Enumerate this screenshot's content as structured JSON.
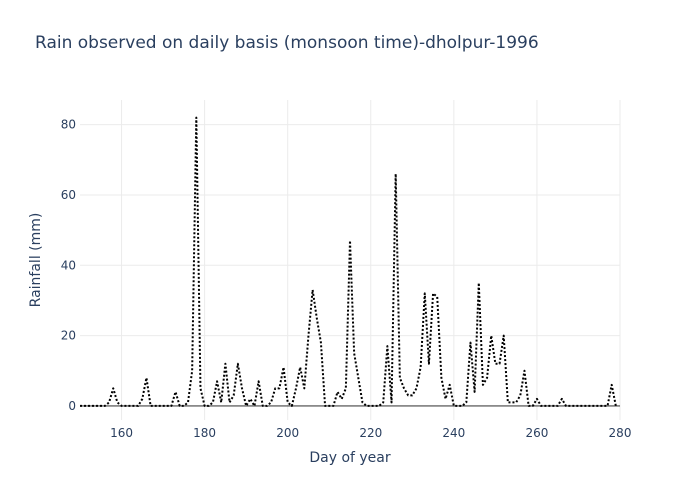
{
  "chart_data": {
    "type": "line",
    "title": "Rain observed on daily basis (monsoon time)-dholpur-1996",
    "xlabel": "Day of year",
    "ylabel": "Rainfall (mm)",
    "xlim": [
      150,
      280
    ],
    "ylim": [
      -4,
      87
    ],
    "xticks": [
      160,
      180,
      200,
      220,
      240,
      260,
      280
    ],
    "yticks": [
      0,
      20,
      40,
      60,
      80
    ],
    "grid": true,
    "legend": "none",
    "line_style": "dotted",
    "line_color": "#000000",
    "x": [
      150,
      151,
      152,
      153,
      154,
      155,
      156,
      157,
      158,
      159,
      160,
      161,
      162,
      163,
      164,
      165,
      166,
      167,
      168,
      169,
      170,
      171,
      172,
      173,
      174,
      175,
      176,
      177,
      178,
      179,
      180,
      181,
      182,
      183,
      184,
      185,
      186,
      187,
      188,
      189,
      190,
      191,
      192,
      193,
      194,
      195,
      196,
      197,
      198,
      199,
      200,
      201,
      202,
      203,
      204,
      205,
      206,
      207,
      208,
      209,
      210,
      211,
      212,
      213,
      214,
      215,
      216,
      217,
      218,
      219,
      220,
      221,
      222,
      223,
      224,
      225,
      226,
      227,
      228,
      229,
      230,
      231,
      232,
      233,
      234,
      235,
      236,
      237,
      238,
      239,
      240,
      241,
      242,
      243,
      244,
      245,
      246,
      247,
      248,
      249,
      250,
      251,
      252,
      253,
      254,
      255,
      256,
      257,
      258,
      259,
      260,
      261,
      262,
      263,
      264,
      265,
      266,
      267,
      268,
      269,
      270,
      271,
      272,
      273,
      274,
      275,
      276,
      277,
      278,
      279
    ],
    "y": [
      0,
      0,
      0,
      0,
      0,
      0,
      0,
      1,
      5,
      1,
      0,
      0,
      0,
      0,
      0,
      2,
      8,
      0,
      0,
      0,
      0,
      0,
      0,
      4,
      0,
      0,
      1,
      10,
      82,
      5,
      0,
      0,
      1,
      7,
      1,
      12,
      1,
      3,
      12,
      5,
      0,
      2,
      0,
      7,
      0,
      0,
      1,
      5,
      5,
      11,
      1,
      0,
      5,
      11,
      5,
      20,
      33,
      25,
      18,
      0,
      0,
      0,
      4,
      2,
      5,
      47,
      15,
      8,
      1,
      0,
      0,
      0,
      0,
      1,
      17,
      1,
      66,
      8,
      5,
      3,
      3,
      5,
      11,
      32,
      12,
      32,
      31,
      8,
      2,
      6,
      0,
      0,
      0,
      1,
      18,
      4,
      35,
      6,
      8,
      20,
      12,
      12,
      20,
      1,
      1,
      1,
      3,
      10,
      0,
      0,
      2,
      0,
      0,
      0,
      0,
      0,
      2,
      0,
      0,
      0,
      0,
      0,
      0,
      0,
      0,
      0,
      0,
      0,
      6,
      0
    ]
  }
}
